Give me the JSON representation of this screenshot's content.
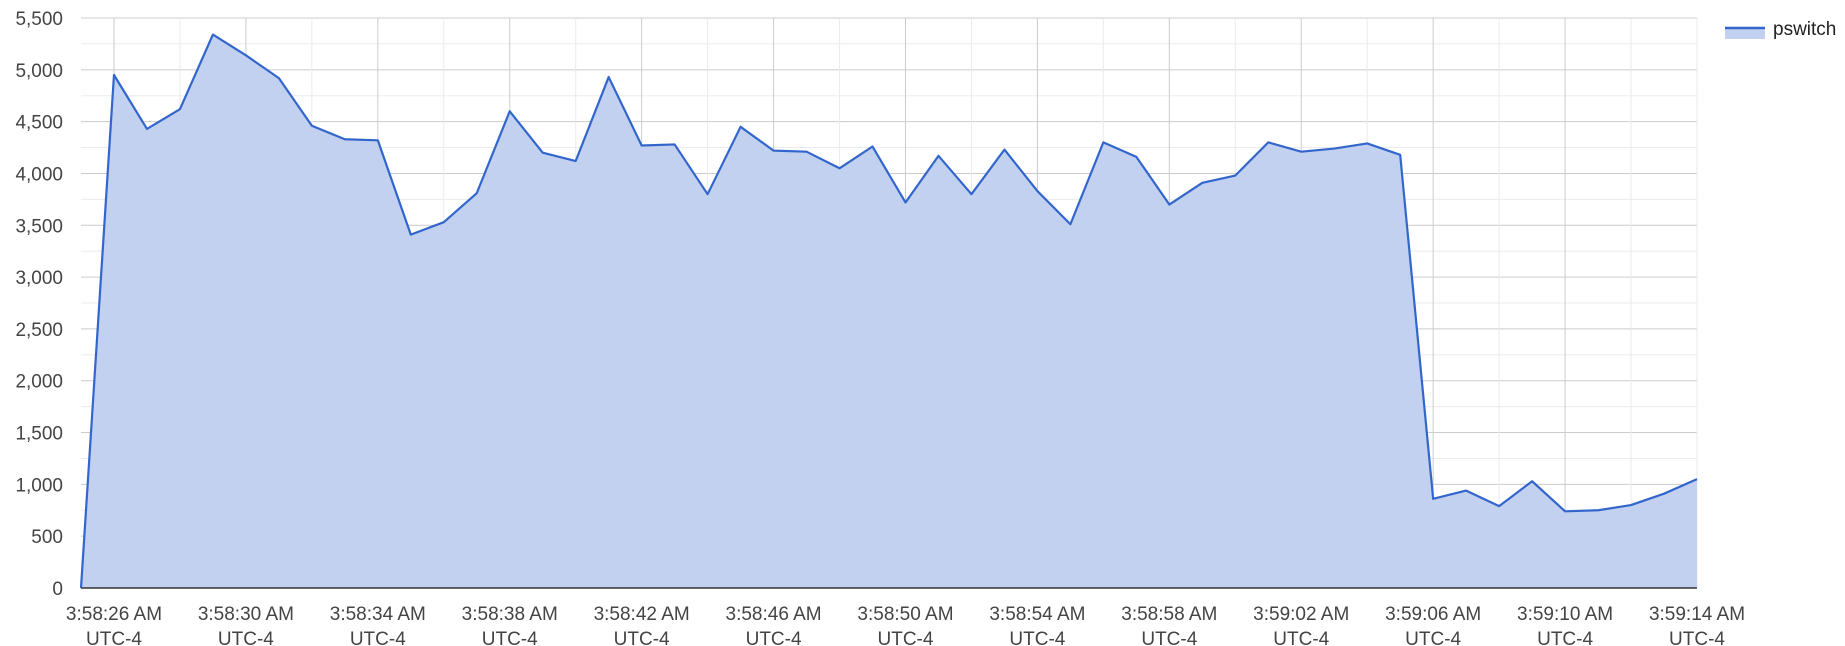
{
  "chart_data": {
    "type": "area",
    "title": "",
    "xlabel": "",
    "ylabel": "",
    "ylim": [
      0,
      5500
    ],
    "y_ticks": [
      0,
      500,
      1000,
      1500,
      2000,
      2500,
      3000,
      3500,
      4000,
      4500,
      5000,
      5500
    ],
    "y_tick_labels": [
      "0",
      "500",
      "1,000",
      "1,500",
      "2,000",
      "2,500",
      "3,000",
      "3,500",
      "4,000",
      "4,500",
      "5,000",
      "5,500"
    ],
    "x_range": [
      "3:58:25 AM",
      "3:59:14 AM"
    ],
    "x_ticks": [
      {
        "time": "3:58:26 AM",
        "tz": "UTC-4"
      },
      {
        "time": "3:58:30 AM",
        "tz": "UTC-4"
      },
      {
        "time": "3:58:34 AM",
        "tz": "UTC-4"
      },
      {
        "time": "3:58:38 AM",
        "tz": "UTC-4"
      },
      {
        "time": "3:58:42 AM",
        "tz": "UTC-4"
      },
      {
        "time": "3:58:46 AM",
        "tz": "UTC-4"
      },
      {
        "time": "3:58:50 AM",
        "tz": "UTC-4"
      },
      {
        "time": "3:58:54 AM",
        "tz": "UTC-4"
      },
      {
        "time": "3:58:58 AM",
        "tz": "UTC-4"
      },
      {
        "time": "3:59:02 AM",
        "tz": "UTC-4"
      },
      {
        "time": "3:59:06 AM",
        "tz": "UTC-4"
      },
      {
        "time": "3:59:10 AM",
        "tz": "UTC-4"
      },
      {
        "time": "3:59:14 AM",
        "tz": "UTC-4"
      }
    ],
    "grid": true,
    "legend_position": "top-right",
    "x": [
      "3:58:25 AM",
      "3:58:26 AM",
      "3:58:27 AM",
      "3:58:28 AM",
      "3:58:29 AM",
      "3:58:30 AM",
      "3:58:31 AM",
      "3:58:32 AM",
      "3:58:33 AM",
      "3:58:34 AM",
      "3:58:35 AM",
      "3:58:36 AM",
      "3:58:37 AM",
      "3:58:38 AM",
      "3:58:39 AM",
      "3:58:40 AM",
      "3:58:41 AM",
      "3:58:42 AM",
      "3:58:43 AM",
      "3:58:44 AM",
      "3:58:45 AM",
      "3:58:46 AM",
      "3:58:47 AM",
      "3:58:48 AM",
      "3:58:49 AM",
      "3:58:50 AM",
      "3:58:51 AM",
      "3:58:52 AM",
      "3:58:53 AM",
      "3:58:54 AM",
      "3:58:55 AM",
      "3:58:56 AM",
      "3:58:57 AM",
      "3:58:58 AM",
      "3:58:59 AM",
      "3:59:00 AM",
      "3:59:01 AM",
      "3:59:02 AM",
      "3:59:03 AM",
      "3:59:04 AM",
      "3:59:05 AM",
      "3:59:06 AM",
      "3:59:07 AM",
      "3:59:08 AM",
      "3:59:09 AM",
      "3:59:10 AM",
      "3:59:11 AM",
      "3:59:12 AM",
      "3:59:13 AM",
      "3:59:14 AM"
    ],
    "series": [
      {
        "name": "pswitch",
        "color": "#3366cc",
        "fill": "#c2d1ef",
        "values": [
          0,
          4950,
          4430,
          4620,
          5340,
          5140,
          4920,
          4460,
          4330,
          4320,
          3410,
          3530,
          3810,
          4600,
          4200,
          4120,
          4930,
          4270,
          4280,
          3800,
          4450,
          4220,
          4210,
          4050,
          4260,
          3720,
          4170,
          3800,
          4230,
          3830,
          3510,
          4300,
          4160,
          3700,
          3910,
          3980,
          4300,
          4210,
          4240,
          4290,
          4180,
          860,
          940,
          790,
          1030,
          740,
          750,
          800,
          910,
          1050
        ]
      }
    ]
  }
}
